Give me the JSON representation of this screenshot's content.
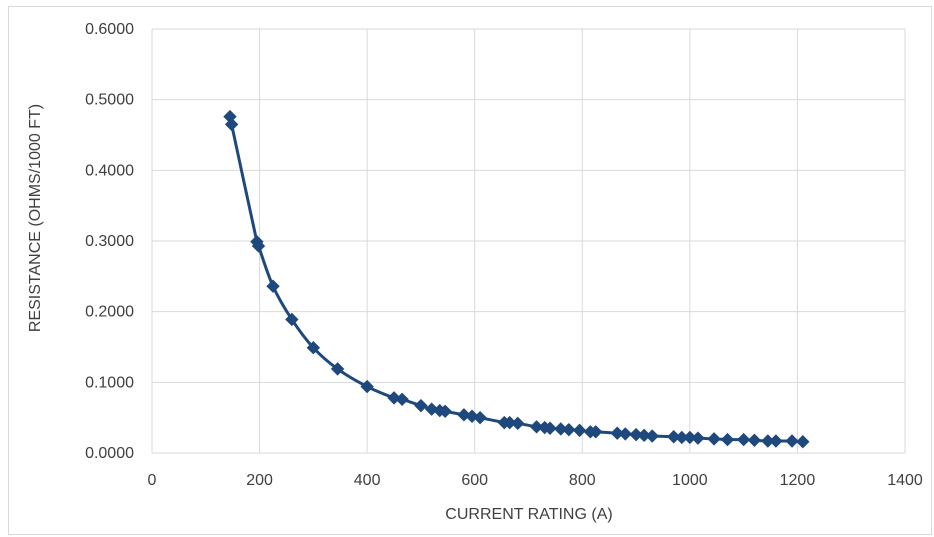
{
  "chart_data": {
    "type": "line",
    "xlabel": "CURRENT RATING (A)",
    "ylabel": "RESISTANCE (OHMS/1000 FT)",
    "xlim": [
      0,
      1400
    ],
    "ylim": [
      0,
      0.6
    ],
    "x_ticks": [
      "0",
      "200",
      "400",
      "600",
      "800",
      "1000",
      "1200",
      "1400"
    ],
    "y_ticks": [
      "0.0000",
      "0.1000",
      "0.2000",
      "0.3000",
      "0.4000",
      "0.5000",
      "0.6000"
    ],
    "x_tick_values": [
      0,
      200,
      400,
      600,
      800,
      1000,
      1200,
      1400
    ],
    "y_tick_values": [
      0,
      0.1,
      0.2,
      0.3,
      0.4,
      0.5,
      0.6
    ],
    "grid": "vertical and horizontal",
    "series": [
      {
        "color": "#1f497d",
        "marker": "diamond",
        "x": [
          145,
          148,
          195,
          198,
          225,
          260,
          300,
          345,
          400,
          450,
          465,
          500,
          520,
          535,
          545,
          580,
          595,
          610,
          655,
          665,
          680,
          715,
          730,
          740,
          760,
          775,
          795,
          815,
          825,
          865,
          880,
          900,
          915,
          930,
          970,
          985,
          1000,
          1015,
          1045,
          1070,
          1100,
          1120,
          1145,
          1160,
          1190,
          1210
        ],
        "y": [
          0.476,
          0.465,
          0.299,
          0.293,
          0.236,
          0.189,
          0.149,
          0.119,
          0.094,
          0.078,
          0.076,
          0.067,
          0.062,
          0.06,
          0.059,
          0.054,
          0.052,
          0.05,
          0.043,
          0.043,
          0.042,
          0.037,
          0.036,
          0.035,
          0.034,
          0.033,
          0.032,
          0.03,
          0.03,
          0.028,
          0.027,
          0.026,
          0.025,
          0.024,
          0.023,
          0.022,
          0.022,
          0.021,
          0.02,
          0.019,
          0.019,
          0.018,
          0.017,
          0.017,
          0.017,
          0.016
        ]
      }
    ]
  }
}
